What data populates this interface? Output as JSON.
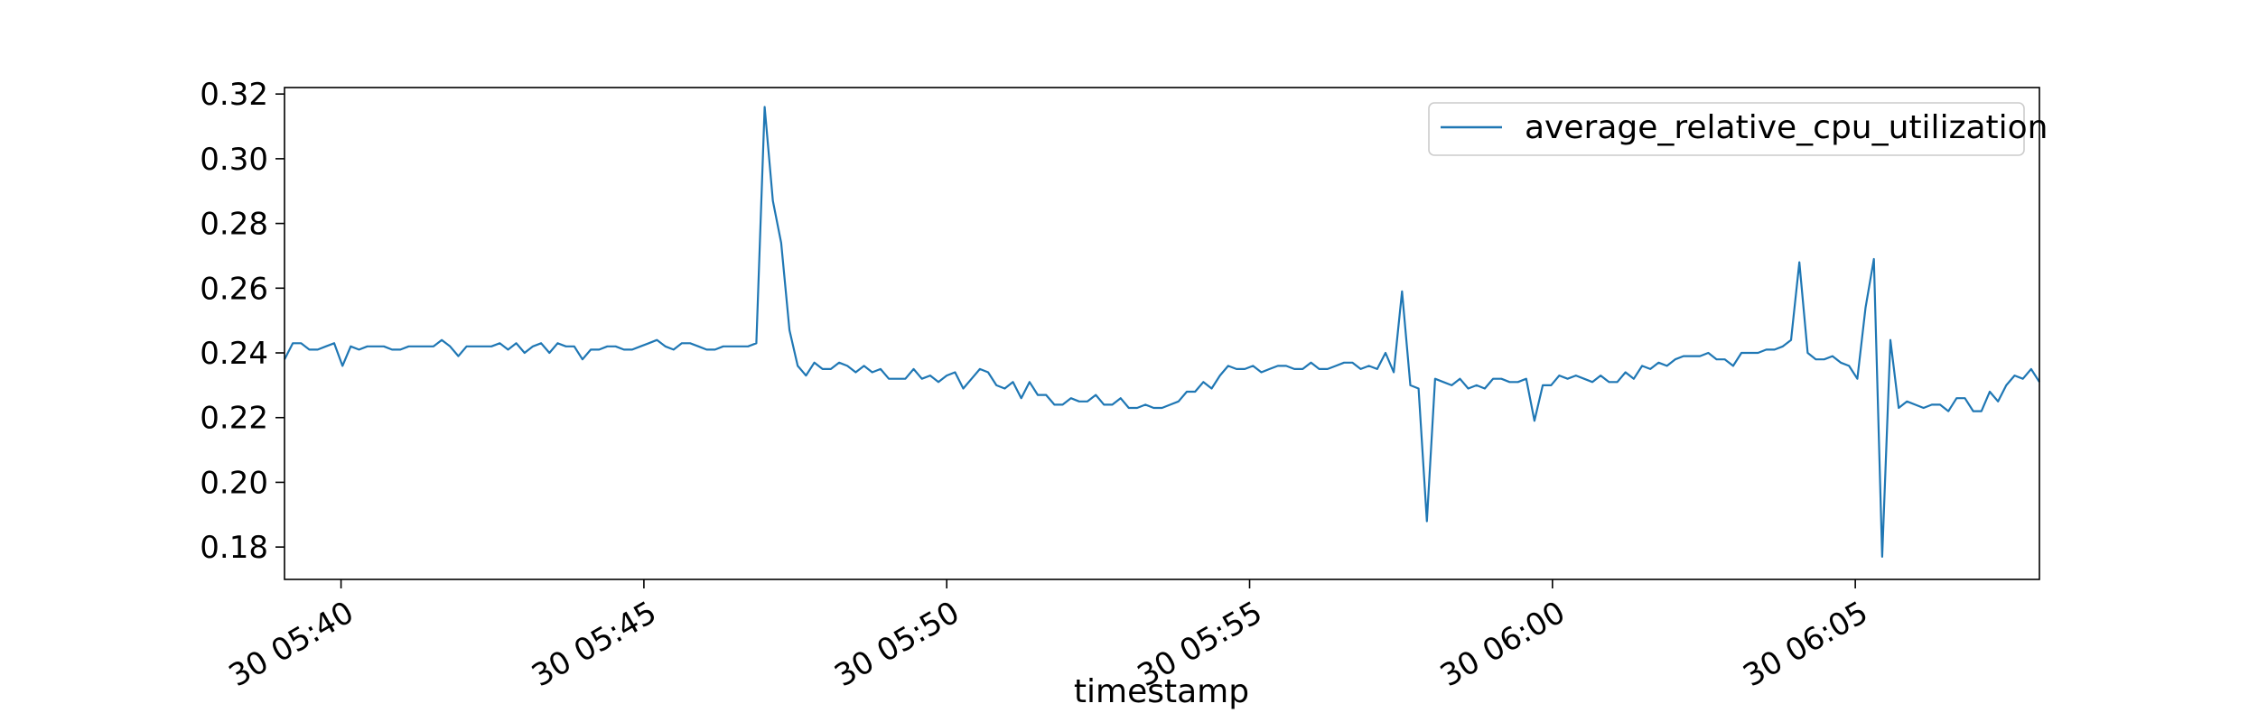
{
  "chart_data": {
    "type": "line",
    "title": "",
    "xlabel": "timestamp",
    "ylabel": "",
    "ylim": [
      0.17,
      0.322
    ],
    "xlim_minutes": [
      5.5,
      43.9
    ],
    "grid": false,
    "legend_placement": "top-right",
    "line_color": "#1f77b4",
    "x_ticks": [
      {
        "value": "05:40",
        "label": "30 05:40"
      },
      {
        "value": "05:45",
        "label": "30 05:45"
      },
      {
        "value": "05:50",
        "label": "30 05:50"
      },
      {
        "value": "05:55",
        "label": "30 05:55"
      },
      {
        "value": "06:00",
        "label": "30 06:00"
      },
      {
        "value": "06:05",
        "label": "30 06:05"
      }
    ],
    "y_ticks": [
      {
        "value": 0.18,
        "label": "0.18"
      },
      {
        "value": 0.2,
        "label": "0.20"
      },
      {
        "value": 0.22,
        "label": "0.22"
      },
      {
        "value": 0.24,
        "label": "0.24"
      },
      {
        "value": 0.26,
        "label": "0.26"
      },
      {
        "value": 0.28,
        "label": "0.28"
      },
      {
        "value": 0.3,
        "label": "0.30"
      },
      {
        "value": 0.32,
        "label": "0.32"
      }
    ],
    "x_start": "05:39:04",
    "x_step_seconds": 8.2,
    "series": [
      {
        "name": "average_relative_cpu_utilization",
        "values": [
          0.238,
          0.243,
          0.243,
          0.241,
          0.241,
          0.242,
          0.243,
          0.236,
          0.242,
          0.241,
          0.242,
          0.242,
          0.242,
          0.241,
          0.241,
          0.242,
          0.242,
          0.242,
          0.242,
          0.244,
          0.242,
          0.239,
          0.242,
          0.242,
          0.242,
          0.242,
          0.243,
          0.241,
          0.243,
          0.24,
          0.242,
          0.243,
          0.24,
          0.243,
          0.242,
          0.242,
          0.238,
          0.241,
          0.241,
          0.242,
          0.242,
          0.241,
          0.241,
          0.242,
          0.243,
          0.244,
          0.242,
          0.241,
          0.243,
          0.243,
          0.242,
          0.241,
          0.241,
          0.242,
          0.242,
          0.242,
          0.242,
          0.243,
          0.316,
          0.287,
          0.274,
          0.247,
          0.236,
          0.233,
          0.237,
          0.235,
          0.235,
          0.237,
          0.236,
          0.234,
          0.236,
          0.234,
          0.235,
          0.232,
          0.232,
          0.232,
          0.235,
          0.232,
          0.233,
          0.231,
          0.233,
          0.234,
          0.229,
          0.232,
          0.235,
          0.234,
          0.23,
          0.229,
          0.231,
          0.226,
          0.231,
          0.227,
          0.227,
          0.224,
          0.224,
          0.226,
          0.225,
          0.225,
          0.227,
          0.224,
          0.224,
          0.226,
          0.223,
          0.223,
          0.224,
          0.223,
          0.223,
          0.224,
          0.225,
          0.228,
          0.228,
          0.231,
          0.229,
          0.233,
          0.236,
          0.235,
          0.235,
          0.236,
          0.234,
          0.235,
          0.236,
          0.236,
          0.235,
          0.235,
          0.237,
          0.235,
          0.235,
          0.236,
          0.237,
          0.237,
          0.235,
          0.236,
          0.235,
          0.24,
          0.234,
          0.259,
          0.23,
          0.229,
          0.188,
          0.232,
          0.231,
          0.23,
          0.232,
          0.229,
          0.23,
          0.229,
          0.232,
          0.232,
          0.231,
          0.231,
          0.232,
          0.219,
          0.23,
          0.23,
          0.233,
          0.232,
          0.233,
          0.232,
          0.231,
          0.233,
          0.231,
          0.231,
          0.234,
          0.232,
          0.236,
          0.235,
          0.237,
          0.236,
          0.238,
          0.239,
          0.239,
          0.239,
          0.24,
          0.238,
          0.238,
          0.236,
          0.24,
          0.24,
          0.24,
          0.241,
          0.241,
          0.242,
          0.244,
          0.268,
          0.24,
          0.238,
          0.238,
          0.239,
          0.237,
          0.236,
          0.232,
          0.254,
          0.269,
          0.177,
          0.244,
          0.223,
          0.225,
          0.224,
          0.223,
          0.224,
          0.224,
          0.222,
          0.226,
          0.226,
          0.222,
          0.222,
          0.228,
          0.225,
          0.23,
          0.233,
          0.232,
          0.235,
          0.231
        ]
      }
    ]
  }
}
